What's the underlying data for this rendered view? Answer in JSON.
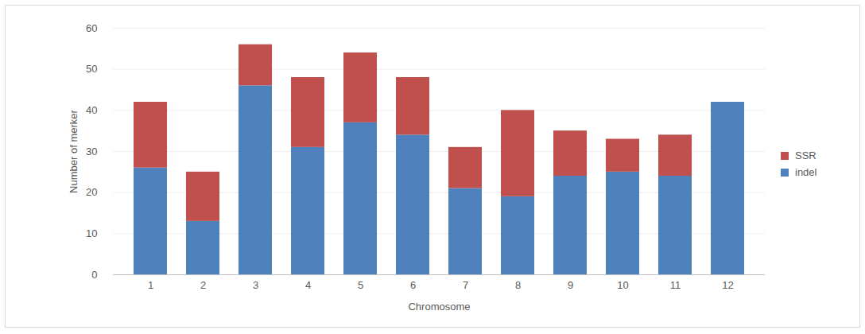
{
  "chart_data": {
    "type": "bar",
    "stacked": true,
    "x_label": "Chromosome",
    "y_label": "Number of merker",
    "categories": [
      "1",
      "2",
      "3",
      "4",
      "5",
      "6",
      "7",
      "8",
      "9",
      "10",
      "11",
      "12"
    ],
    "series": [
      {
        "name": "indel",
        "color": "#4f81bd",
        "values": [
          26,
          13,
          46,
          31,
          37,
          34,
          21,
          19,
          24,
          25,
          24,
          42
        ]
      },
      {
        "name": "SSR",
        "color": "#c0504d",
        "values": [
          16,
          12,
          10,
          17,
          17,
          14,
          10,
          21,
          11,
          8,
          10,
          0
        ]
      }
    ],
    "ylim": [
      0,
      60
    ],
    "yticks": [
      0,
      10,
      20,
      30,
      40,
      50,
      60
    ],
    "grid": true,
    "legend": "right"
  }
}
